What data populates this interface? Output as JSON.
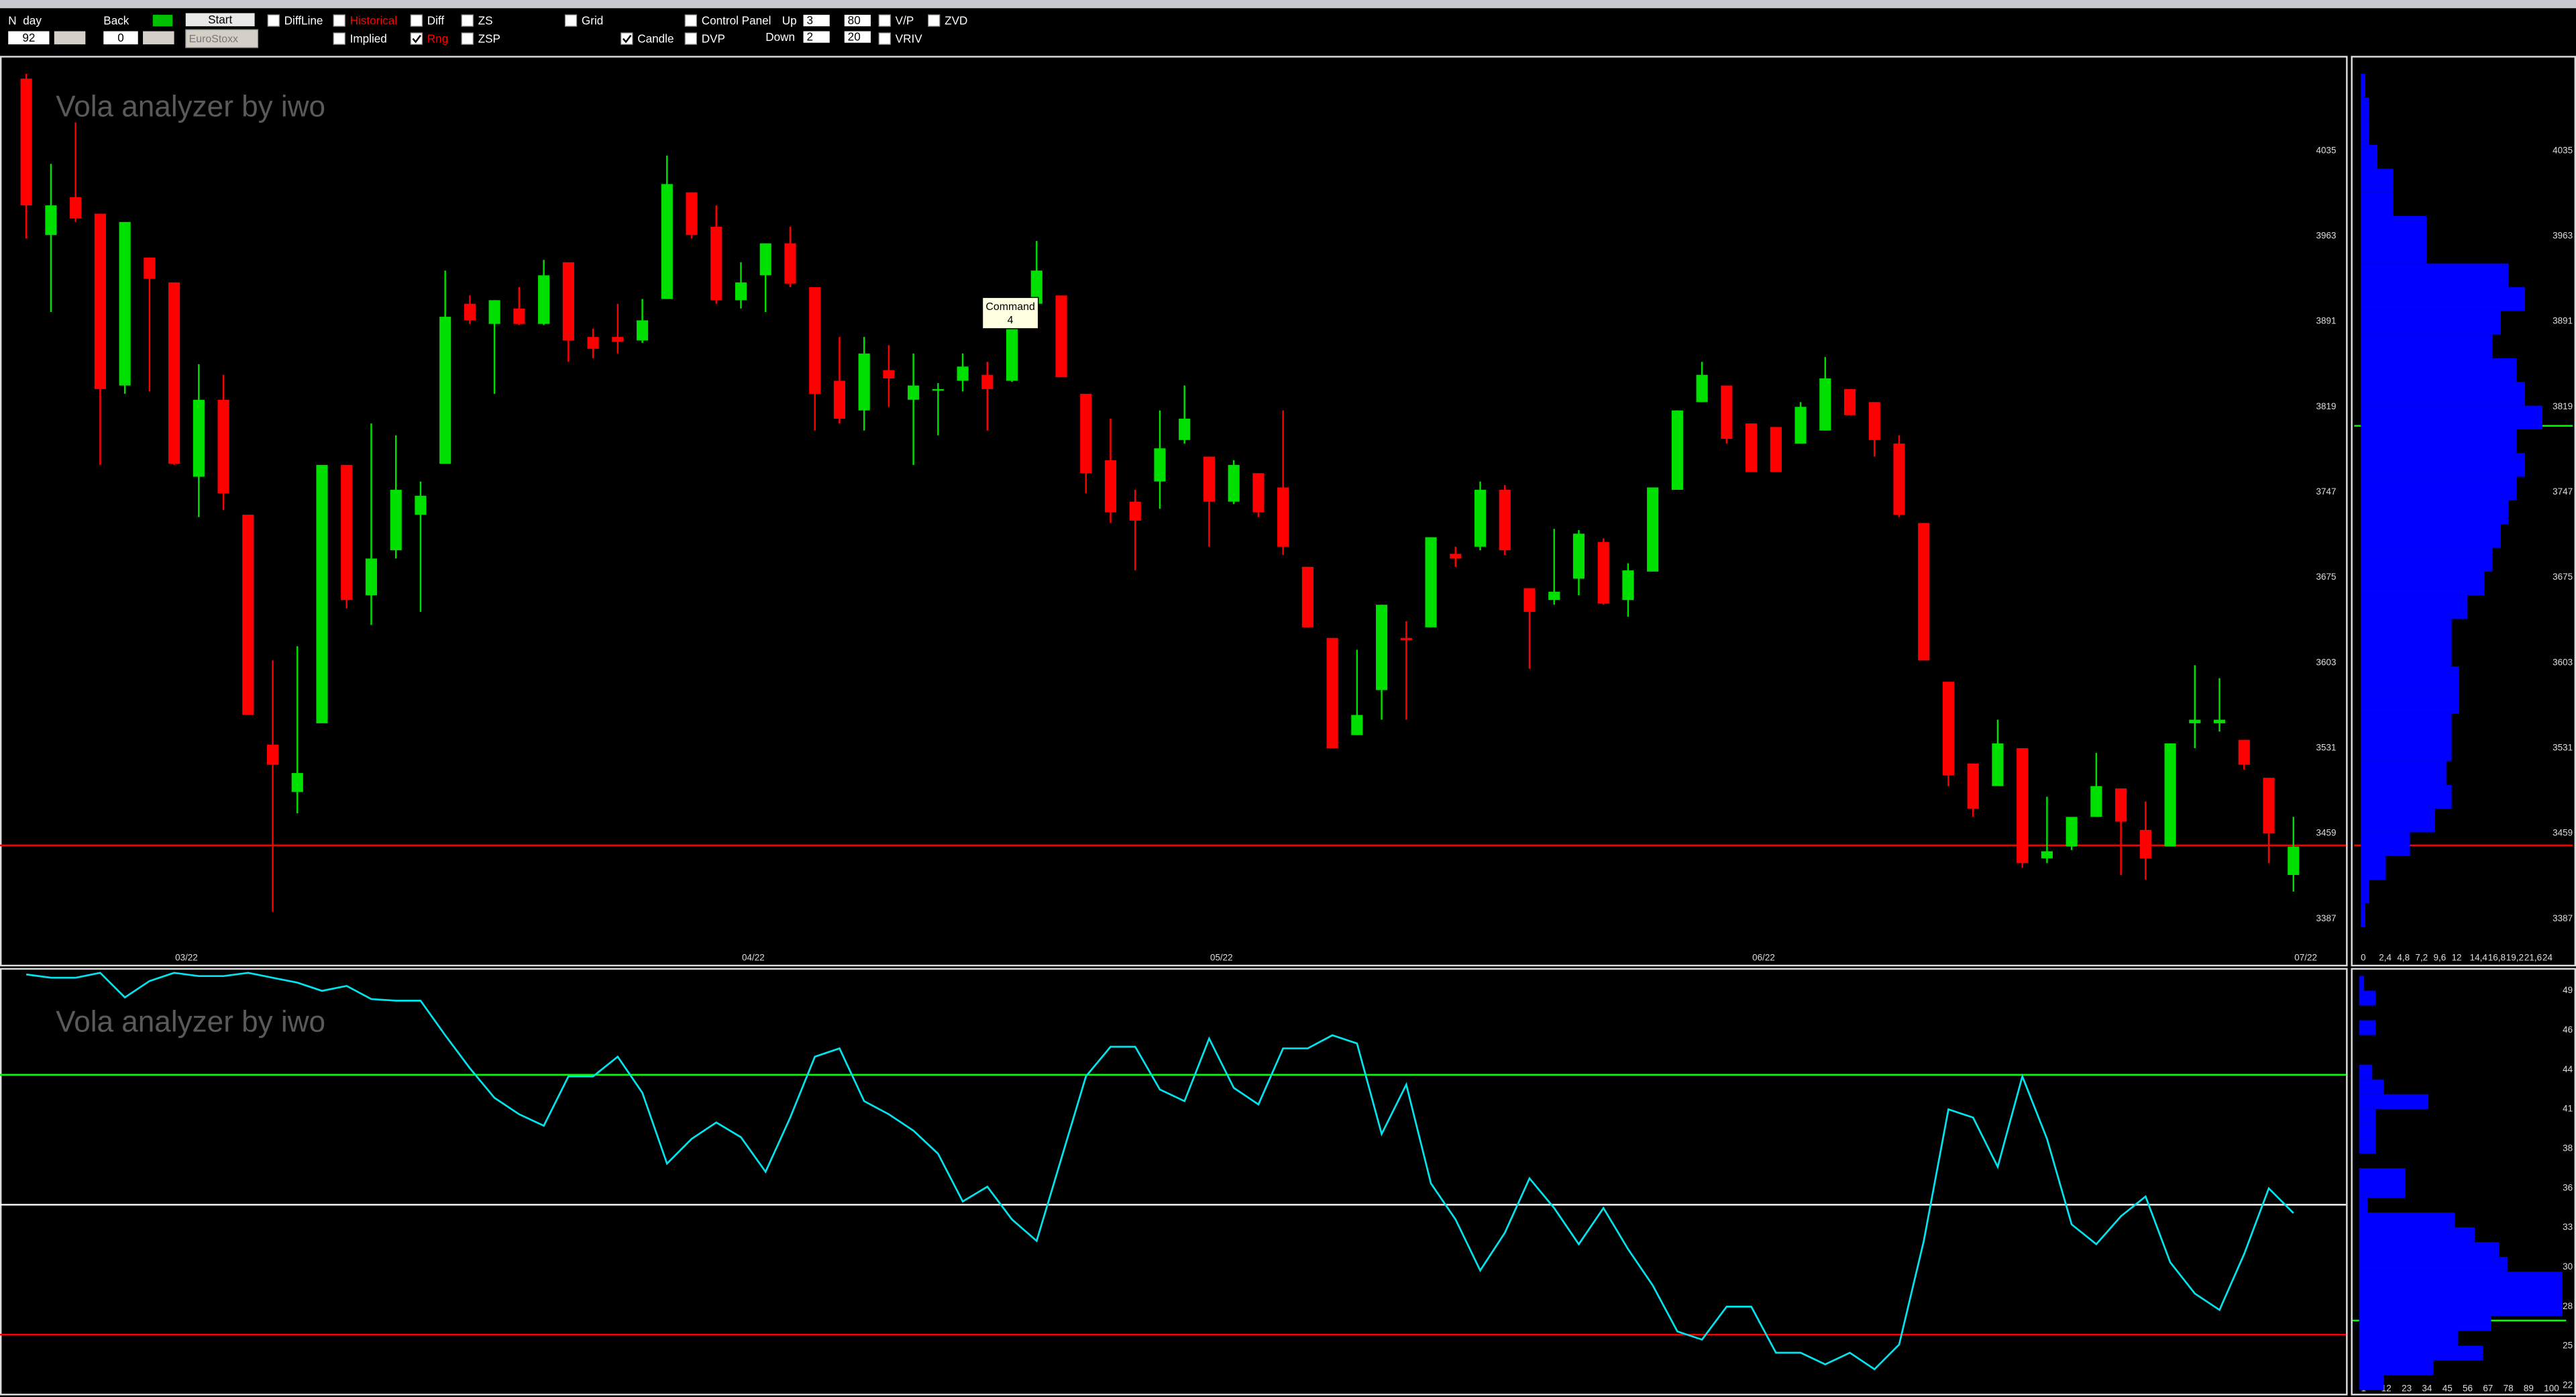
{
  "toolbar": {
    "n_label": "N",
    "period": "day",
    "n_value": 92,
    "back_label": "Back",
    "back_value": 0,
    "start": "Start",
    "index": "EuroStoxx",
    "checkboxes": [
      {
        "label": "DiffLine",
        "checked": false
      },
      {
        "label": "Historical",
        "checked": false,
        "color": "#ff0000"
      },
      {
        "label": "Implied",
        "checked": false
      },
      {
        "label": "Diff",
        "checked": false
      },
      {
        "label": "Rng",
        "checked": true,
        "color": "#ff0000"
      },
      {
        "label": "ZS",
        "checked": false
      },
      {
        "label": "ZSP",
        "checked": false
      },
      {
        "label": "Grid",
        "checked": false
      },
      {
        "label": "Candle",
        "checked": true
      },
      {
        "label": "Control Panel",
        "checked": false
      },
      {
        "label": "DVP",
        "checked": false
      },
      {
        "label": "V/P",
        "checked": false
      },
      {
        "label": "ZVD",
        "checked": false
      },
      {
        "label": "VRIV",
        "checked": false
      }
    ],
    "up_label": "Up",
    "up_values": [
      3,
      80
    ],
    "down_label": "Down",
    "down_values": [
      2,
      20
    ],
    "tooltip": {
      "title": "Command",
      "value": 4
    }
  },
  "chart_data": [
    {
      "type": "candlestick",
      "title": "Vola analyzer by iwo",
      "up_color": "#00e000",
      "down_color": "#ff0000",
      "open": [
        4096,
        3964,
        3996,
        3982,
        3837,
        3945,
        3924,
        3760,
        3825,
        3728,
        3534,
        3494,
        3552,
        3770,
        3660,
        3698,
        3728,
        3771,
        3906,
        3889,
        3902,
        3889,
        3941,
        3878,
        3878,
        3875,
        3910,
        4000,
        3971,
        3909,
        3930,
        3957,
        3920,
        3841,
        3816,
        3850,
        3825,
        3833,
        3841,
        3846,
        3841,
        3906,
        3913,
        3830,
        3774,
        3739,
        3756,
        3791,
        3777,
        3739,
        3763,
        3751,
        3684,
        3624,
        3542,
        3580,
        3624,
        3633,
        3695,
        3701,
        3749,
        3666,
        3656,
        3674,
        3705,
        3656,
        3680,
        3749,
        3823,
        3837,
        3805,
        3802,
        3788,
        3799,
        3834,
        3823,
        3788,
        3721,
        3587,
        3518,
        3499,
        3531,
        3438,
        3448,
        3473,
        3497,
        3462,
        3448,
        3552,
        3552,
        3538,
        3506,
        3424
      ],
      "high": [
        4100,
        4024,
        4059,
        3982,
        3975,
        3945,
        3924,
        3855,
        3846,
        3728,
        3605,
        3617,
        3770,
        3770,
        3805,
        3795,
        3756,
        3934,
        3913,
        3909,
        3920,
        3943,
        3941,
        3885,
        3906,
        3910,
        4031,
        4000,
        3989,
        3941,
        3957,
        3971,
        3920,
        3878,
        3878,
        3871,
        3864,
        3839,
        3864,
        3857,
        3903,
        3959,
        3913,
        3830,
        3809,
        3749,
        3816,
        3837,
        3777,
        3774,
        3763,
        3816,
        3684,
        3624,
        3614,
        3652,
        3638,
        3709,
        3701,
        3756,
        3753,
        3666,
        3716,
        3715,
        3708,
        3687,
        3751,
        3816,
        3857,
        3837,
        3805,
        3802,
        3823,
        3861,
        3834,
        3823,
        3795,
        3721,
        3587,
        3518,
        3555,
        3531,
        3490,
        3473,
        3527,
        3497,
        3486,
        3535,
        3601,
        3590,
        3538,
        3506,
        3473
      ],
      "low": [
        3961,
        3899,
        3975,
        3770,
        3830,
        3832,
        3770,
        3726,
        3732,
        3559,
        3393,
        3476,
        3552,
        3649,
        3635,
        3691,
        3646,
        3771,
        3889,
        3830,
        3888,
        3888,
        3857,
        3860,
        3864,
        3873,
        3910,
        3961,
        3906,
        3902,
        3899,
        3920,
        3799,
        3805,
        3799,
        3819,
        3770,
        3795,
        3832,
        3799,
        3840,
        3906,
        3844,
        3746,
        3721,
        3681,
        3733,
        3788,
        3701,
        3737,
        3726,
        3694,
        3633,
        3531,
        3542,
        3555,
        3555,
        3633,
        3684,
        3698,
        3694,
        3598,
        3652,
        3660,
        3652,
        3642,
        3680,
        3749,
        3823,
        3788,
        3764,
        3764,
        3788,
        3799,
        3812,
        3777,
        3726,
        3605,
        3499,
        3473,
        3499,
        3430,
        3434,
        3445,
        3473,
        3424,
        3420,
        3448,
        3531,
        3545,
        3513,
        3434,
        3410
      ],
      "close": [
        3989,
        3989,
        3978,
        3834,
        3975,
        3927,
        3771,
        3825,
        3746,
        3559,
        3517,
        3510,
        3770,
        3656,
        3691,
        3749,
        3744,
        3895,
        3892,
        3909,
        3889,
        3930,
        3875,
        3868,
        3874,
        3892,
        4007,
        3964,
        3909,
        3924,
        3957,
        3923,
        3830,
        3809,
        3864,
        3843,
        3837,
        3834,
        3853,
        3834,
        3885,
        3934,
        3844,
        3763,
        3730,
        3723,
        3784,
        3809,
        3739,
        3770,
        3730,
        3701,
        3633,
        3531,
        3559,
        3652,
        3622,
        3709,
        3691,
        3749,
        3698,
        3646,
        3663,
        3712,
        3653,
        3681,
        3751,
        3816,
        3846,
        3792,
        3764,
        3764,
        3819,
        3843,
        3812,
        3791,
        3728,
        3605,
        3508,
        3480,
        3535,
        3434,
        3444,
        3473,
        3499,
        3469,
        3438,
        3535,
        3555,
        3555,
        3517,
        3459,
        3448
      ],
      "ylim": [
        3351,
        4111
      ],
      "yticks": [
        4035,
        3963,
        3891,
        3819,
        3747,
        3675,
        3603,
        3531,
        3459,
        3387
      ],
      "xticks": [
        {
          "value": 6.5,
          "label": "03/22"
        },
        {
          "value": 29.5,
          "label": "04/22"
        },
        {
          "value": 48.5,
          "label": "05/22"
        },
        {
          "value": 70.5,
          "label": "06/22"
        },
        {
          "value": 92.5,
          "label": "07/22"
        }
      ],
      "hlines": [
        {
          "value": 3449,
          "color": "#ff0000"
        }
      ]
    },
    {
      "type": "line",
      "title": "Vola analyzer by iwo",
      "color": "#00e5ee",
      "values": [
        49.88,
        49.66,
        49.66,
        49.99,
        48.34,
        49.44,
        49.99,
        49.77,
        49.77,
        49.99,
        49.66,
        49.33,
        48.78,
        49.11,
        48.23,
        48.12,
        48.12,
        45.8,
        43.59,
        41.6,
        40.5,
        39.73,
        43.04,
        43.04,
        44.36,
        41.94,
        37.19,
        38.85,
        39.95,
        38.96,
        36.64,
        40.28,
        44.36,
        44.92,
        41.38,
        40.5,
        39.4,
        37.85,
        34.65,
        35.64,
        33.44,
        32.0,
        37.52,
        43.04,
        45.03,
        45.03,
        42.16,
        41.38,
        45.58,
        42.27,
        41.16,
        44.92,
        44.92,
        45.8,
        45.25,
        39.18,
        42.49,
        35.86,
        33.44,
        30.02,
        32.55,
        36.2,
        34.21,
        31.78,
        34.21,
        31.45,
        29.02,
        25.93,
        25.38,
        27.59,
        27.59,
        24.5,
        24.5,
        23.72,
        24.5,
        23.39,
        25.05,
        32.0,
        40.83,
        40.28,
        36.97,
        43.04,
        38.85,
        33.11,
        31.78,
        33.66,
        34.98,
        30.57,
        28.47,
        27.37,
        31.12,
        35.53,
        33.87
      ],
      "ylim": [
        21.75,
        50.2
      ],
      "hlines": [
        {
          "value": 43.15,
          "color": "#00ff00"
        },
        {
          "value": 34.43,
          "color": "#ffffff"
        },
        {
          "value": 25.71,
          "color": "#ff0000"
        }
      ]
    },
    {
      "type": "histogram",
      "orientation": "horizontal",
      "color": "#0000ff",
      "bins": [
        3380,
        3400,
        3420,
        3440,
        3460,
        3480,
        3500,
        3520,
        3540,
        3560,
        3580,
        3600,
        3620,
        3640,
        3660,
        3680,
        3700,
        3720,
        3740,
        3760,
        3780,
        3800,
        3820,
        3840,
        3860,
        3880,
        3900,
        3920,
        3940,
        3960,
        3980,
        4000,
        4020,
        4040,
        4060,
        4080,
        4100
      ],
      "values": [
        0.6,
        1.1,
        3.3,
        6.5,
        9.8,
        12,
        11.3,
        12,
        12,
        13,
        13,
        12,
        12,
        14.1,
        16.3,
        17.4,
        18.5,
        19.5,
        20.6,
        21.7,
        20.6,
        24,
        21.7,
        20.6,
        17.4,
        18.5,
        21.7,
        19.5,
        8.7,
        8.7,
        4.3,
        4.3,
        2.2,
        1.1,
        1.1,
        0.6
      ],
      "ylim": [
        3351,
        4111
      ],
      "yticks": [
        4035,
        3963,
        3891,
        3819,
        3747,
        3675,
        3603,
        3531,
        3459,
        3387
      ],
      "xlim": [
        0,
        28
      ],
      "xticks": [
        0,
        {
          "value": 2.4,
          "label": "2,4"
        },
        {
          "value": 4.8,
          "label": "4,8"
        },
        {
          "value": 7.2,
          "label": "7,2"
        },
        {
          "value": 9.6,
          "label": "9,6"
        },
        12,
        {
          "value": 14.4,
          "label": "14,4"
        },
        {
          "value": 16.8,
          "label": "16,8"
        },
        {
          "value": 19.2,
          "label": "19,2"
        },
        {
          "value": 21.6,
          "label": "21,6"
        },
        24
      ],
      "hlines": [
        {
          "value": 3803,
          "color": "#00ff00"
        },
        {
          "value": 3449,
          "color": "#ff0000"
        }
      ]
    },
    {
      "type": "histogram",
      "orientation": "horizontal",
      "color": "#0000ff",
      "bins": [
        22,
        23,
        24,
        25,
        26,
        27,
        28,
        29,
        30,
        31,
        32,
        33,
        34,
        35,
        36,
        37,
        38,
        39,
        40,
        41,
        42,
        43,
        44,
        45,
        46,
        47,
        48,
        49,
        50
      ],
      "values": [
        13.4,
        40.2,
        67,
        53.6,
        71.4,
        110,
        110,
        110,
        80.4,
        75.9,
        62.5,
        51.8,
        4.5,
        25,
        25,
        0,
        8.9,
        8.9,
        8.9,
        37.5,
        13.4,
        7.1,
        0,
        0,
        8.9,
        0,
        8.9,
        2.7
      ],
      "ylim": [
        21.75,
        50.2
      ],
      "yticks": [
        49,
        {
          "value": 46.33,
          "label": "46"
        },
        {
          "value": 43.66,
          "label": "44"
        },
        {
          "value": 40.99,
          "label": "41"
        },
        {
          "value": 38.32,
          "label": "38"
        },
        {
          "value": 35.65,
          "label": "36"
        },
        {
          "value": 32.98,
          "label": "33"
        },
        {
          "value": 30.31,
          "label": "30"
        },
        {
          "value": 27.64,
          "label": "28"
        },
        {
          "value": 24.97,
          "label": "25"
        },
        {
          "value": 22.3,
          "label": "22"
        }
      ],
      "xlim": [
        0,
        112
      ],
      "xticks": [
        1,
        12,
        23,
        34,
        45,
        56,
        67,
        78,
        89,
        100
      ],
      "hlines": [
        {
          "value": 26.7,
          "color": "#00ff00"
        }
      ]
    }
  ]
}
